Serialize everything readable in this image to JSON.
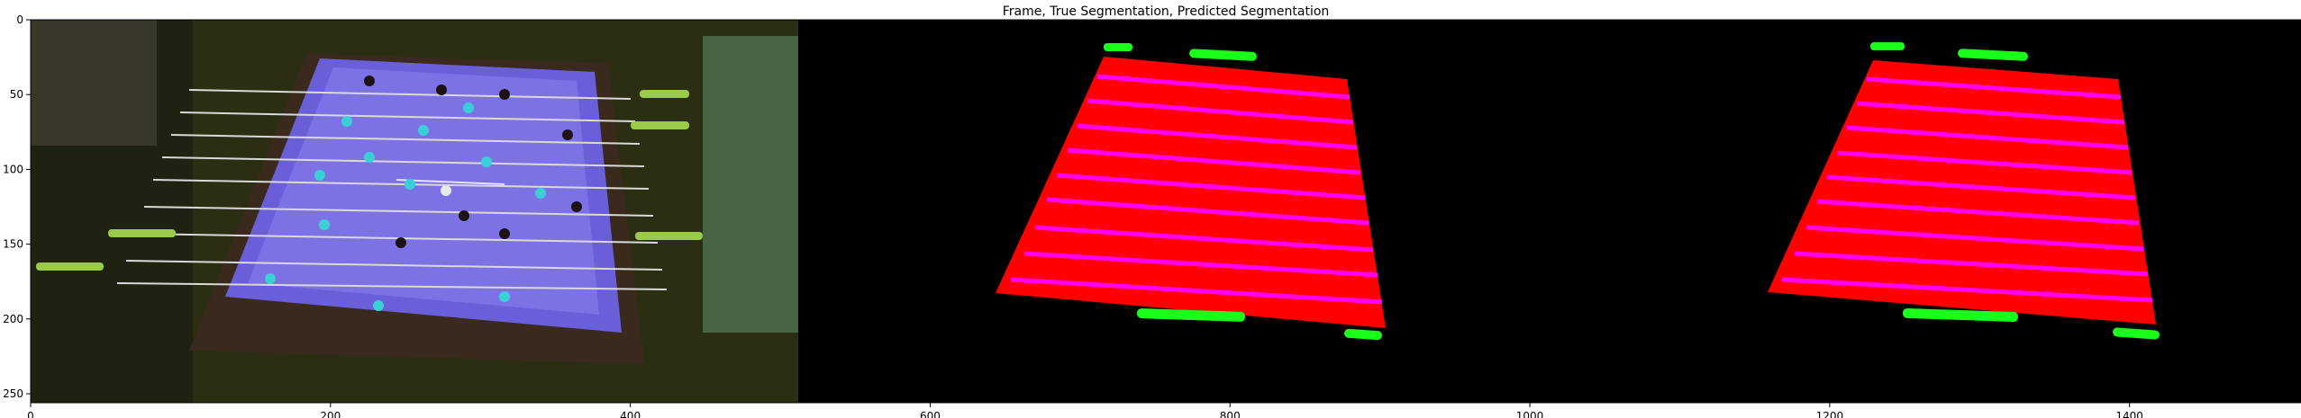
{
  "chart_data": {
    "type": "image",
    "title": "Frame, True Segmentation, Predicted Segmentation",
    "xlabel": "",
    "ylabel": "",
    "xlim": [
      0,
      1536
    ],
    "ylim": [
      256,
      0
    ],
    "x_ticks": [
      0,
      200,
      400,
      600,
      800,
      1000,
      1200,
      1400
    ],
    "y_ticks": [
      0,
      50,
      100,
      150,
      200,
      250
    ],
    "panels": [
      {
        "name": "frame",
        "x_range": [
          0,
          512
        ]
      },
      {
        "name": "true-segmentation",
        "x_range": [
          512,
          1024
        ]
      },
      {
        "name": "predicted-segmentation",
        "x_range": [
          1024,
          1536
        ]
      }
    ],
    "colors": {
      "table": "#ff0000",
      "rods": "#ff00ff",
      "handles": "#1aff1a",
      "background": "#000000",
      "frame_floor": "#2b2e12",
      "frame_field": "#6a5fd8"
    }
  }
}
